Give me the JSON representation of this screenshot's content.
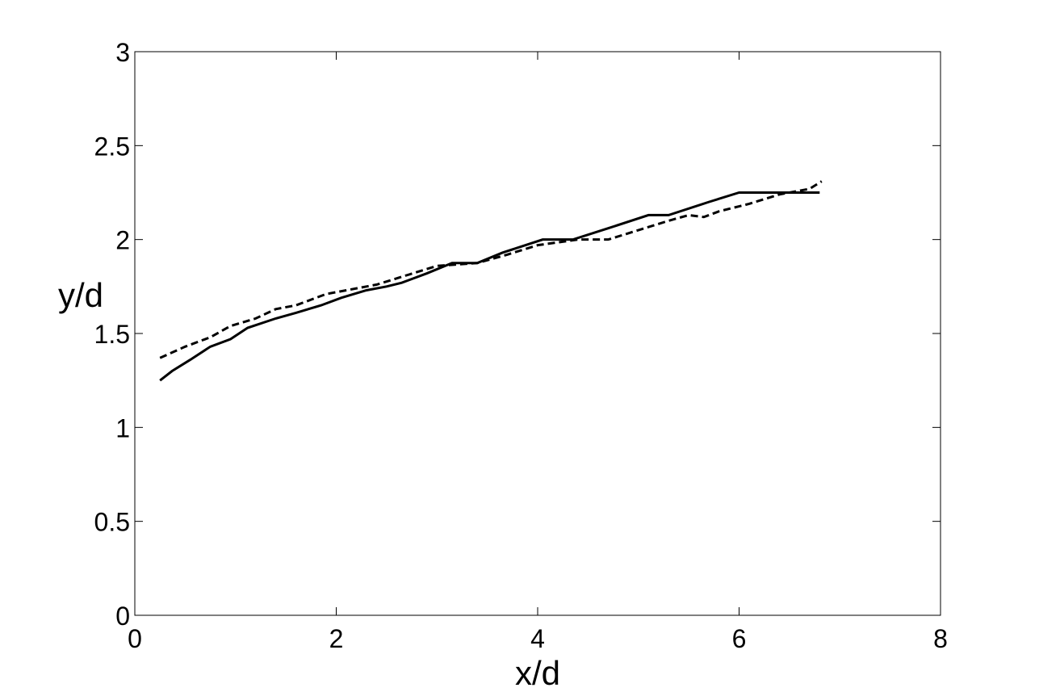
{
  "chart_data": {
    "type": "line",
    "x_label": "x/d",
    "y_label": "y/d",
    "xlim": [
      0,
      8
    ],
    "ylim": [
      0,
      3
    ],
    "xticks": [
      0,
      2,
      4,
      6,
      8
    ],
    "yticks": [
      0,
      0.5,
      1,
      1.5,
      2,
      2.5,
      3
    ],
    "series": [
      {
        "color": "#000000",
        "dash": "solid",
        "x": [
          0.25,
          0.37,
          0.55,
          0.75,
          0.95,
          1.12,
          1.4,
          1.6,
          1.85,
          2.05,
          2.3,
          2.5,
          2.65,
          2.9,
          3.15,
          3.4,
          3.65,
          4.05,
          4.35,
          4.7,
          5.1,
          5.3,
          5.7,
          6.0,
          6.8
        ],
        "values": [
          1.25,
          1.3,
          1.36,
          1.43,
          1.47,
          1.53,
          1.58,
          1.61,
          1.65,
          1.69,
          1.73,
          1.75,
          1.77,
          1.82,
          1.875,
          1.875,
          1.93,
          2.0,
          2.0,
          2.06,
          2.13,
          2.13,
          2.2,
          2.25,
          2.25
        ]
      },
      {
        "color": "#000000",
        "dash": "dashed",
        "x": [
          0.25,
          0.5,
          0.75,
          0.95,
          1.2,
          1.4,
          1.6,
          1.9,
          2.1,
          2.4,
          2.7,
          3.0,
          3.4,
          3.7,
          4.0,
          4.4,
          4.7,
          5.0,
          5.3,
          5.5,
          5.65,
          5.8,
          6.1,
          6.4,
          6.7,
          6.82
        ],
        "values": [
          1.37,
          1.43,
          1.48,
          1.54,
          1.58,
          1.63,
          1.65,
          1.71,
          1.73,
          1.76,
          1.81,
          1.86,
          1.875,
          1.92,
          1.97,
          2.0,
          2.0,
          2.05,
          2.1,
          2.13,
          2.12,
          2.15,
          2.19,
          2.24,
          2.27,
          2.31
        ]
      }
    ]
  }
}
